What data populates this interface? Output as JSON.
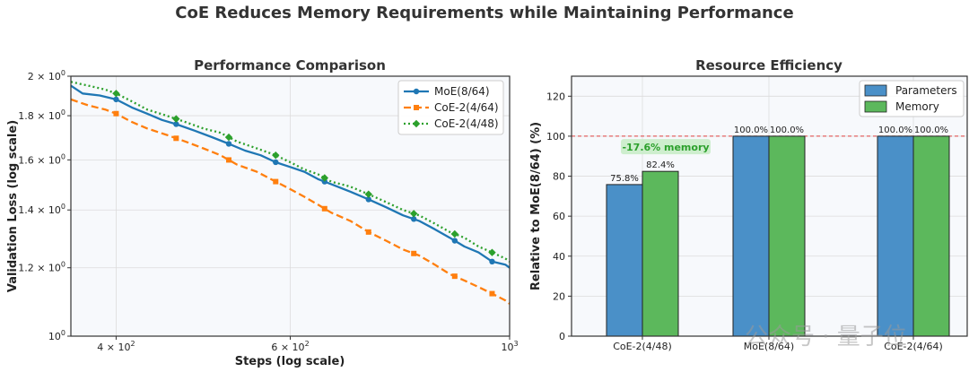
{
  "figure": {
    "suptitle": "CoE Reduces Memory Requirements while Maintaining Performance",
    "watermark": "公众号 · 量子位"
  },
  "chart_data": [
    {
      "type": "line",
      "title": "Performance Comparison",
      "xlabel": "Steps (log scale)",
      "ylabel": "Validation Loss (log scale)",
      "xscale": "log",
      "yscale": "log",
      "xlim": [
        360,
        1000
      ],
      "ylim": [
        1.0,
        2.0
      ],
      "xticks": [
        {
          "value": 400,
          "base": "4 × 10",
          "exp": "2"
        },
        {
          "value": 600,
          "base": "6 × 10",
          "exp": "2"
        },
        {
          "value": 1000,
          "base": "10",
          "exp": "3"
        }
      ],
      "yticks": [
        {
          "value": 1.0,
          "base": "10",
          "exp": "0"
        },
        {
          "value": 1.2,
          "base": "1.2 × 10",
          "exp": "0"
        },
        {
          "value": 1.4,
          "base": "1.4 × 10",
          "exp": "0"
        },
        {
          "value": 1.6,
          "base": "1.6 × 10",
          "exp": "0"
        },
        {
          "value": 1.8,
          "base": "1.8 × 10",
          "exp": "0"
        },
        {
          "value": 2.0,
          "base": "2 × 10",
          "exp": "0"
        }
      ],
      "grid": true,
      "legend_position": "top-right",
      "series": [
        {
          "name": "MoE(8/64)",
          "color": "#1f77b4",
          "style": "solid",
          "marker": "circle",
          "x": [
            360,
            370,
            385,
            400,
            415,
            430,
            445,
            460,
            480,
            500,
            520,
            540,
            560,
            580,
            600,
            620,
            640,
            660,
            690,
            720,
            750,
            780,
            810,
            840,
            870,
            900,
            930,
            960,
            990,
            1000
          ],
          "y": [
            1.95,
            1.91,
            1.9,
            1.88,
            1.84,
            1.81,
            1.78,
            1.76,
            1.73,
            1.7,
            1.67,
            1.64,
            1.62,
            1.59,
            1.57,
            1.55,
            1.52,
            1.5,
            1.47,
            1.44,
            1.41,
            1.38,
            1.36,
            1.33,
            1.3,
            1.27,
            1.25,
            1.22,
            1.21,
            1.2
          ],
          "marker_x": [
            400,
            460,
            520,
            580,
            650,
            720,
            800,
            880,
            960
          ]
        },
        {
          "name": "CoE-2(4/64)",
          "color": "#ff7f0e",
          "style": "dashed",
          "marker": "square",
          "x": [
            360,
            375,
            390,
            400,
            415,
            430,
            450,
            470,
            490,
            510,
            530,
            555,
            580,
            600,
            620,
            640,
            660,
            690,
            720,
            750,
            780,
            810,
            840,
            870,
            900,
            930,
            960,
            990,
            1000
          ],
          "y": [
            1.88,
            1.85,
            1.83,
            1.81,
            1.77,
            1.74,
            1.71,
            1.68,
            1.65,
            1.62,
            1.58,
            1.55,
            1.51,
            1.48,
            1.45,
            1.42,
            1.39,
            1.36,
            1.32,
            1.29,
            1.26,
            1.24,
            1.21,
            1.18,
            1.16,
            1.14,
            1.12,
            1.1,
            1.09
          ],
          "marker_x": [
            400,
            460,
            520,
            580,
            650,
            720,
            800,
            880,
            960
          ]
        },
        {
          "name": "CoE-2(4/48)",
          "color": "#2ca02c",
          "style": "dotted",
          "marker": "diamond",
          "x": [
            360,
            375,
            390,
            400,
            415,
            430,
            450,
            470,
            490,
            510,
            530,
            555,
            580,
            600,
            620,
            640,
            660,
            690,
            720,
            750,
            780,
            810,
            840,
            870,
            900,
            930,
            960,
            990,
            1000
          ],
          "y": [
            1.97,
            1.95,
            1.93,
            1.91,
            1.87,
            1.83,
            1.8,
            1.77,
            1.74,
            1.72,
            1.68,
            1.65,
            1.62,
            1.59,
            1.56,
            1.54,
            1.51,
            1.49,
            1.46,
            1.43,
            1.4,
            1.38,
            1.35,
            1.32,
            1.3,
            1.27,
            1.25,
            1.23,
            1.22
          ],
          "marker_x": [
            400,
            460,
            520,
            580,
            650,
            720,
            800,
            880,
            960
          ]
        }
      ]
    },
    {
      "type": "bar",
      "title": "Resource Efficiency",
      "xlabel": "",
      "ylabel": "Relative to MoE(8/64) (%)",
      "ylim": [
        0,
        130
      ],
      "yticks": [
        0,
        20,
        40,
        60,
        80,
        100,
        120
      ],
      "categories": [
        "CoE-2(4/48)",
        "MoE(8/64)",
        "CoE-2(4/64)"
      ],
      "series": [
        {
          "name": "Parameters",
          "color": "#4a90c8",
          "values": [
            75.8,
            100.0,
            100.0
          ],
          "labels": [
            "75.8%",
            "100.0%",
            "100.0%"
          ]
        },
        {
          "name": "Memory",
          "color": "#5cb85c",
          "values": [
            82.4,
            100.0,
            100.0
          ],
          "labels": [
            "82.4%",
            "100.0%",
            "100.0%"
          ]
        }
      ],
      "reference_line": {
        "value": 100,
        "color": "#e04040",
        "style": "dashed"
      },
      "annotation": {
        "text": "-17.6% memory",
        "category": "CoE-2(4/48)",
        "y": 95
      },
      "grid": true,
      "legend_position": "top-right"
    }
  ]
}
